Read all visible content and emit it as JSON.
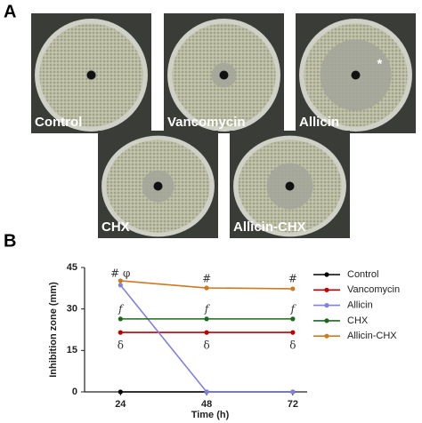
{
  "panel_a": {
    "letter": "A",
    "images": [
      {
        "label": "Control"
      },
      {
        "label": "Vancomycin"
      },
      {
        "label": "Allicin",
        "mark": "*"
      },
      {
        "label": "CHX"
      },
      {
        "label": "Allicin-CHX"
      }
    ]
  },
  "chart_data": {
    "type": "line",
    "letter": "B",
    "xlabel": "Time (h)",
    "ylabel": "Inhibition zone (mm)",
    "x": [
      24,
      48,
      72
    ],
    "xlim": [
      14,
      76
    ],
    "xticks": [
      24,
      48,
      72
    ],
    "ylim": [
      0,
      45
    ],
    "yticks": [
      0,
      15,
      30,
      45
    ],
    "series": [
      {
        "name": "Control",
        "color": "#000000",
        "values": [
          0,
          0,
          0
        ]
      },
      {
        "name": "Vancomycin",
        "color": "#c00000",
        "values": [
          21.5,
          21.5,
          21.5
        ]
      },
      {
        "name": "Allicin",
        "color": "#8080e0",
        "values": [
          38.6,
          0,
          0
        ]
      },
      {
        "name": "CHX",
        "color": "#1a6a1a",
        "values": [
          26.4,
          26.4,
          26.4
        ]
      },
      {
        "name": "Allicin-CHX",
        "color": "#d07a20",
        "values": [
          40.2,
          37.6,
          37.3
        ]
      }
    ],
    "legend": "right",
    "annotations": [
      {
        "text": "# φ",
        "x": 24,
        "y": 42.7
      },
      {
        "text": "#",
        "x": 48,
        "y": 40.8
      },
      {
        "text": "#",
        "x": 72,
        "y": 40.8
      },
      {
        "text": "f",
        "x": 24,
        "y": 29.9
      },
      {
        "text": "f",
        "x": 48,
        "y": 29.9
      },
      {
        "text": "f",
        "x": 72,
        "y": 29.9
      },
      {
        "text": "δ",
        "x": 24,
        "y": 16.7
      },
      {
        "text": "δ",
        "x": 48,
        "y": 16.7
      },
      {
        "text": "δ",
        "x": 72,
        "y": 16.7
      }
    ]
  }
}
